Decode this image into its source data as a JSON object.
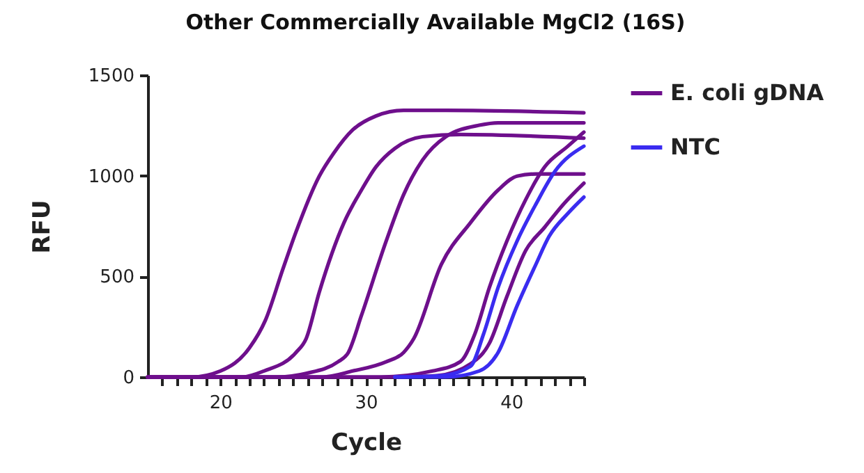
{
  "chart_data": {
    "type": "line",
    "title": "Other Commercially Available MgCl2 (16S)",
    "xlabel": "Cycle",
    "ylabel": "RFU",
    "xlim": [
      15,
      45
    ],
    "ylim": [
      0,
      1500
    ],
    "xticks": [
      {
        "value": 16,
        "label": null
      },
      {
        "value": 17,
        "label": null
      },
      {
        "value": 18,
        "label": null
      },
      {
        "value": 19,
        "label": null
      },
      20,
      {
        "value": 21,
        "label": null
      },
      {
        "value": 22,
        "label": null
      },
      {
        "value": 23,
        "label": null
      },
      {
        "value": 24,
        "label": null
      },
      {
        "value": 25,
        "label": null
      },
      {
        "value": 26,
        "label": null
      },
      {
        "value": 27,
        "label": null
      },
      {
        "value": 28,
        "label": null
      },
      {
        "value": 29,
        "label": null
      },
      30,
      {
        "value": 31,
        "label": null
      },
      {
        "value": 32,
        "label": null
      },
      {
        "value": 33,
        "label": null
      },
      {
        "value": 34,
        "label": null
      },
      {
        "value": 35,
        "label": null
      },
      {
        "value": 36,
        "label": null
      },
      {
        "value": 37,
        "label": null
      },
      {
        "value": 38,
        "label": null
      },
      {
        "value": 39,
        "label": null
      },
      40,
      {
        "value": 41,
        "label": null
      },
      {
        "value": 42,
        "label": null
      },
      {
        "value": 43,
        "label": null
      },
      {
        "value": 44,
        "label": null
      },
      {
        "value": 45,
        "label": null
      }
    ],
    "yticks": [
      0,
      500,
      1000,
      1500
    ],
    "grid": false,
    "legend": "top right",
    "line_style": "solid",
    "marker": "none",
    "series": [
      {
        "name": "E. coli gDNA",
        "color": "#6e0f8c",
        "x": [
          15,
          18,
          20,
          22,
          23.1,
          24.3,
          25.2,
          26.8,
          27.8,
          29.1,
          30.7,
          32.6,
          35.5,
          45
        ],
        "values": [
          0,
          0,
          30,
          145,
          283,
          537,
          721,
          998,
          1113,
          1228,
          1297,
          1325,
          1325,
          1313
        ]
      },
      {
        "color": "#6e0f8c",
        "x": [
          15,
          21.5,
          23,
          25.2,
          25.9,
          26.8,
          28.5,
          29.7,
          30.7,
          32,
          33.9,
          36.5,
          45
        ],
        "values": [
          0,
          0,
          30,
          122,
          191,
          422,
          767,
          929,
          1044,
          1136,
          1194,
          1205,
          1187
        ]
      },
      {
        "color": "#6e0f8c",
        "x": [
          15,
          24,
          25.9,
          28.1,
          28.8,
          29.7,
          31.4,
          32.6,
          33.9,
          35.5,
          37.8,
          39.1,
          45
        ],
        "values": [
          0,
          0,
          18,
          76,
          122,
          306,
          675,
          906,
          1078,
          1194,
          1251,
          1263,
          1263
        ]
      },
      {
        "color": "#6e0f8c",
        "x": [
          15,
          27,
          29.1,
          31.4,
          32.6,
          33.3,
          35.2,
          37.2,
          39.1,
          40.4,
          41.7,
          45
        ],
        "values": [
          0,
          0,
          30,
          76,
          122,
          191,
          560,
          767,
          929,
          998,
          1009,
          1009
        ]
      },
      {
        "color": "#6e0f8c",
        "x": [
          15,
          31,
          34.6,
          36.5,
          37.5,
          38.5,
          39.7,
          41,
          42.3,
          43.9,
          45
        ],
        "values": [
          0,
          0,
          30,
          76,
          214,
          445,
          675,
          882,
          1044,
          1147,
          1217
        ]
      },
      {
        "color": "#6e0f8c",
        "x": [
          15,
          32,
          34.9,
          37.2,
          38.5,
          39.7,
          41,
          42.3,
          43.6,
          45
        ],
        "values": [
          0,
          0,
          7,
          65,
          168,
          399,
          629,
          744,
          859,
          963
        ]
      },
      {
        "name": "NTC",
        "color": "#3a2cf0",
        "x": [
          32,
          35.2,
          37.2,
          38.1,
          39.1,
          40.4,
          41.7,
          43,
          45
        ],
        "values": [
          0,
          7,
          53,
          214,
          445,
          675,
          859,
          1021,
          1147
        ]
      },
      {
        "color": "#3a2cf0",
        "x": [
          32,
          35.5,
          37.8,
          39.1,
          40.4,
          41.7,
          42.6,
          43.9,
          45
        ],
        "values": [
          0,
          0,
          30,
          122,
          353,
          560,
          698,
          813,
          894
        ]
      }
    ]
  }
}
